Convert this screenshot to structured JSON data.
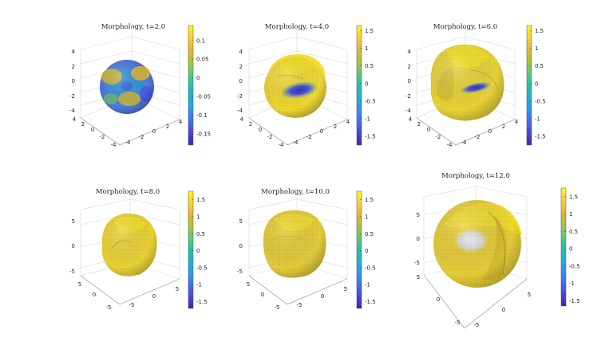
{
  "chart_data": [
    {
      "type": "surface",
      "title": "Morphology, t=2.0",
      "axis_ticks": {
        "z": [
          "4",
          "2",
          "0",
          "-2",
          "-4"
        ],
        "y": [
          "4",
          "2",
          "0",
          "-2",
          "-4"
        ],
        "x": [
          "-4",
          "-2",
          "0",
          "2",
          "4"
        ]
      },
      "colorbar": {
        "ticks": [
          "0.1",
          "0.05",
          "0",
          "-0.05",
          "-0.1",
          "-0.15"
        ],
        "min": -0.18,
        "max": 0.14
      }
    },
    {
      "type": "surface",
      "title": "Morphology, t=4.0",
      "axis_ticks": {
        "z": [
          "4",
          "2",
          "0",
          "-2",
          "-4"
        ],
        "y": [
          "4",
          "2",
          "0",
          "-2",
          "-4"
        ],
        "x": [
          "-4",
          "-2",
          "0",
          "2",
          "4"
        ]
      },
      "colorbar": {
        "ticks": [
          "1.5",
          "1",
          "0.5",
          "0",
          "-0.5",
          "-1",
          "-1.5"
        ],
        "min": -1.75,
        "max": 1.65
      }
    },
    {
      "type": "surface",
      "title": "Morphology, t=6.0",
      "axis_ticks": {
        "z": [
          "4",
          "2",
          "0",
          "-2",
          "-4"
        ],
        "y": [
          "4",
          "2",
          "0",
          "-2",
          "-4"
        ],
        "x": [
          "-4",
          "-2",
          "0",
          "2",
          "4"
        ]
      },
      "colorbar": {
        "ticks": [
          "1.5",
          "1",
          "0.5",
          "0",
          "-0.5",
          "-1",
          "-1.5"
        ],
        "min": -1.75,
        "max": 1.65
      }
    },
    {
      "type": "surface",
      "title": "Morphology, t=8.0",
      "axis_ticks": {
        "z": [
          "5",
          "0",
          "-5"
        ],
        "y": [
          "5",
          "0",
          "-5"
        ],
        "x": [
          "-5",
          "0",
          "5"
        ]
      },
      "colorbar": {
        "ticks": [
          "1.5",
          "1",
          "0.5",
          "0",
          "-0.5",
          "-1",
          "-1.5"
        ],
        "min": -1.7,
        "max": 1.75
      }
    },
    {
      "type": "surface",
      "title": "Morphology, t=10.0",
      "axis_ticks": {
        "z": [
          "5",
          "0",
          "-5"
        ],
        "y": [
          "5",
          "0",
          "-5"
        ],
        "x": [
          "-5",
          "0",
          "5"
        ]
      },
      "colorbar": {
        "ticks": [
          "1.5",
          "1",
          "0.5",
          "0",
          "-0.5",
          "-1",
          "-1.5"
        ],
        "min": -1.7,
        "max": 1.75
      }
    },
    {
      "type": "surface",
      "title": "Morphology, t=12.0",
      "axis_ticks": {
        "z": [
          "5",
          "0",
          "-5"
        ],
        "y": [
          "5",
          "0",
          "-5"
        ],
        "x": [
          "-5",
          "0",
          "5"
        ]
      },
      "colorbar": {
        "ticks": [
          "1.5",
          "1",
          "0.5",
          "0",
          "-0.5",
          "-1",
          "-1.5"
        ],
        "min": -1.65,
        "max": 1.75
      }
    }
  ],
  "colormap": [
    "#3e26a8",
    "#4743e2",
    "#3e6efe",
    "#2d96ef",
    "#1cb3d3",
    "#21c2aa",
    "#5fca75",
    "#a9c43d",
    "#e8b52e",
    "#fcd12e",
    "#f9fb15"
  ]
}
